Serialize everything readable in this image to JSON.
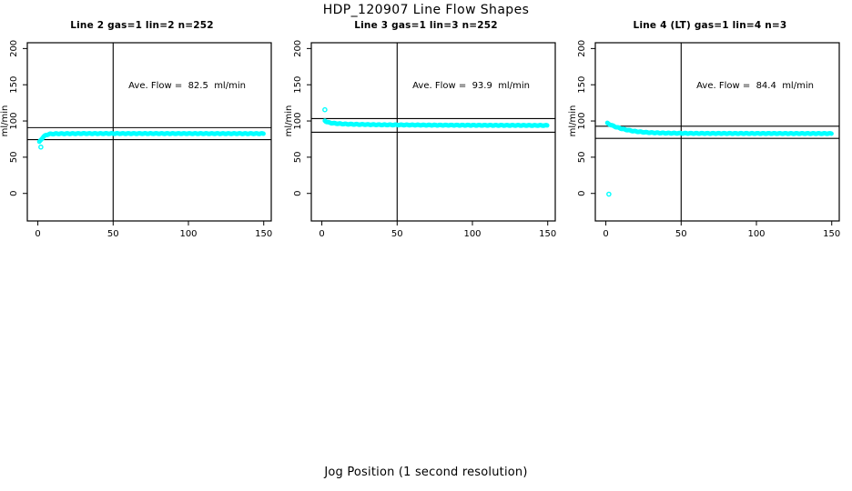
{
  "figure": {
    "title": "HDP_120907  Line Flow Shapes",
    "xlabel": "Jog Position (1 second resolution)",
    "background_color": "#FFFFFF",
    "axis_color": "#000000",
    "point_color": "#00FFFF"
  },
  "chart_data": [
    {
      "type": "scatter",
      "title": "Line 2 gas=1 lin=2 n=252",
      "annotation": "Ave. Flow =  82.5  ml/min",
      "ave_flow_ml_min": 82.5,
      "n": 252,
      "ylabel": "ml/min",
      "xticks": [
        0,
        50,
        100,
        150
      ],
      "yticks": [
        0,
        50,
        100,
        150,
        200
      ],
      "xlim": [
        -7,
        155
      ],
      "ylim": [
        -38,
        208
      ],
      "vline_x": 50,
      "hlines": [
        90.8,
        74.3
      ],
      "marker": "open-circle",
      "band": [
        [
          1,
          71
        ],
        [
          2,
          74
        ],
        [
          3,
          76.5
        ],
        [
          4,
          78.5
        ],
        [
          5,
          80
        ],
        [
          6,
          81
        ],
        [
          8,
          82
        ],
        [
          12,
          82.4
        ],
        [
          30,
          82.6
        ],
        [
          80,
          82.6
        ],
        [
          150,
          82.5
        ]
      ],
      "outliers": [
        [
          2,
          64
        ]
      ]
    },
    {
      "type": "scatter",
      "title": "Line 3 gas=1 lin=3 n=252",
      "annotation": "Ave. Flow =  93.9  ml/min",
      "ave_flow_ml_min": 93.9,
      "n": 252,
      "ylabel": "ml/min",
      "xticks": [
        0,
        50,
        100,
        150
      ],
      "yticks": [
        0,
        50,
        100,
        150,
        200
      ],
      "xlim": [
        -7,
        155
      ],
      "ylim": [
        -38,
        208
      ],
      "vline_x": 50,
      "hlines": [
        103.3,
        84.5
      ],
      "marker": "open-circle",
      "band": [
        [
          2,
          100.5
        ],
        [
          3,
          99
        ],
        [
          4,
          98.2
        ],
        [
          5,
          97.6
        ],
        [
          7,
          97
        ],
        [
          10,
          96.4
        ],
        [
          15,
          95.8
        ],
        [
          25,
          95.2
        ],
        [
          40,
          94.7
        ],
        [
          70,
          94.3
        ],
        [
          110,
          94
        ],
        [
          150,
          93.8
        ]
      ],
      "outliers": [
        [
          2,
          115.5
        ]
      ]
    },
    {
      "type": "scatter",
      "title": "Line 4 (LT) gas=1 lin=4 n=3",
      "annotation": "Ave. Flow =  84.4  ml/min",
      "ave_flow_ml_min": 84.4,
      "n": 3,
      "ylabel": "ml/min",
      "xticks": [
        0,
        50,
        100,
        150
      ],
      "yticks": [
        0,
        50,
        100,
        150,
        200
      ],
      "xlim": [
        -7,
        155
      ],
      "ylim": [
        -38,
        208
      ],
      "vline_x": 50,
      "hlines": [
        92.8,
        76.0
      ],
      "marker": "open-circle",
      "band": [
        [
          1,
          97
        ],
        [
          2,
          95.8
        ],
        [
          3,
          94.8
        ],
        [
          4,
          93.8
        ],
        [
          5,
          93
        ],
        [
          6,
          92.2
        ],
        [
          8,
          90.8
        ],
        [
          10,
          89.6
        ],
        [
          13,
          88
        ],
        [
          16,
          86.8
        ],
        [
          20,
          85.5
        ],
        [
          25,
          84.5
        ],
        [
          30,
          83.8
        ],
        [
          40,
          83.2
        ],
        [
          55,
          82.9
        ],
        [
          80,
          82.8
        ],
        [
          120,
          82.7
        ],
        [
          150,
          82.6
        ]
      ],
      "outliers": [
        [
          2,
          -1
        ]
      ]
    }
  ]
}
